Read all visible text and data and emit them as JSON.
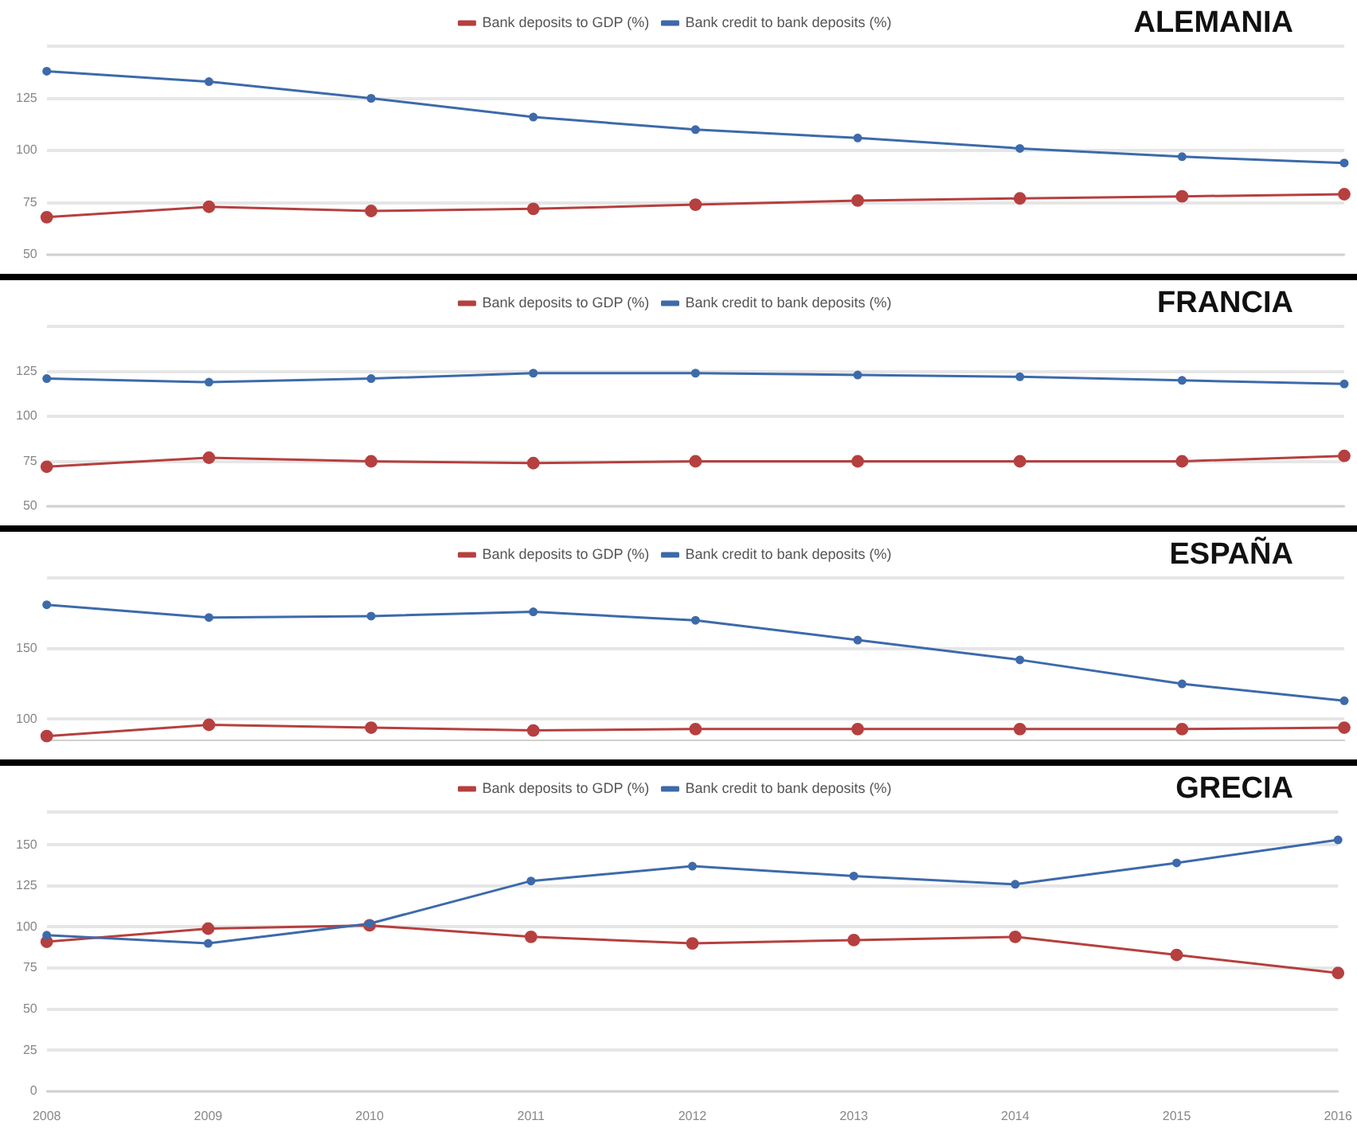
{
  "chart_data": [
    {
      "type": "line",
      "title": "ALEMANIA",
      "categories": [
        "2008",
        "2009",
        "2010",
        "2011",
        "2012",
        "2013",
        "2014",
        "2015",
        "2016"
      ],
      "series": [
        {
          "name": "Bank deposits to GDP (%)",
          "color": "#b5403f",
          "values": [
            68,
            73,
            71,
            72,
            74,
            76,
            77,
            78,
            79
          ]
        },
        {
          "name": "Bank credit to bank deposits (%)",
          "color": "#3d6aaa",
          "values": [
            138,
            133,
            125,
            116,
            110,
            106,
            101,
            97,
            94
          ]
        }
      ],
      "ylim": [
        50,
        150
      ],
      "yticks": [
        50,
        75,
        100,
        125,
        {
          "value": 150,
          "label": null
        }
      ],
      "grid": "y",
      "legend": "top",
      "marker": "circle",
      "line_style": "solid",
      "tick_labels": "y"
    },
    {
      "type": "line",
      "title": "FRANCIA",
      "categories": [
        "2008",
        "2009",
        "2010",
        "2011",
        "2012",
        "2013",
        "2014",
        "2015",
        "2016"
      ],
      "series": [
        {
          "name": "Bank deposits to GDP (%)",
          "color": "#b5403f",
          "values": [
            72,
            77,
            75,
            74,
            75,
            75,
            75,
            75,
            78
          ]
        },
        {
          "name": "Bank credit to bank deposits (%)",
          "color": "#3d6aaa",
          "values": [
            121,
            119,
            121,
            124,
            124,
            123,
            122,
            120,
            118
          ]
        }
      ],
      "ylim": [
        50,
        150
      ],
      "yticks": [
        50,
        75,
        100,
        125,
        {
          "value": 150,
          "label": null
        }
      ],
      "grid": "y",
      "legend": "top",
      "marker": "circle",
      "line_style": "solid",
      "tick_labels": "y"
    },
    {
      "type": "line",
      "title": "ESPAÑA",
      "categories": [
        "2008",
        "2009",
        "2010",
        "2011",
        "2012",
        "2013",
        "2014",
        "2015",
        "2016"
      ],
      "series": [
        {
          "name": "Bank deposits to GDP (%)",
          "color": "#b5403f",
          "values": [
            88,
            96,
            94,
            92,
            93,
            93,
            93,
            93,
            94
          ]
        },
        {
          "name": "Bank credit to bank deposits (%)",
          "color": "#3d6aaa",
          "values": [
            181,
            172,
            173,
            176,
            170,
            156,
            142,
            125,
            113
          ]
        }
      ],
      "ylim": [
        85,
        200
      ],
      "yticks": [
        100,
        150,
        {
          "value": 200,
          "label": null
        }
      ],
      "grid": "y",
      "legend": "top",
      "marker": "circle",
      "line_style": "solid",
      "tick_labels": "y"
    },
    {
      "type": "line",
      "title": "GRECIA",
      "categories": [
        "2008",
        "2009",
        "2010",
        "2011",
        "2012",
        "2013",
        "2014",
        "2015",
        "2016"
      ],
      "series": [
        {
          "name": "Bank deposits to GDP (%)",
          "color": "#b5403f",
          "values": [
            91,
            99,
            101,
            94,
            90,
            92,
            94,
            83,
            72
          ]
        },
        {
          "name": "Bank credit to bank deposits (%)",
          "color": "#3d6aaa",
          "values": [
            95,
            90,
            102,
            128,
            137,
            131,
            126,
            139,
            153
          ]
        }
      ],
      "ylim": [
        0,
        170
      ],
      "yticks": [
        0,
        25,
        50,
        75,
        100,
        125,
        150,
        {
          "value": 170,
          "label": null
        }
      ],
      "grid": "y",
      "legend": "top",
      "marker": "circle",
      "line_style": "solid"
    }
  ]
}
